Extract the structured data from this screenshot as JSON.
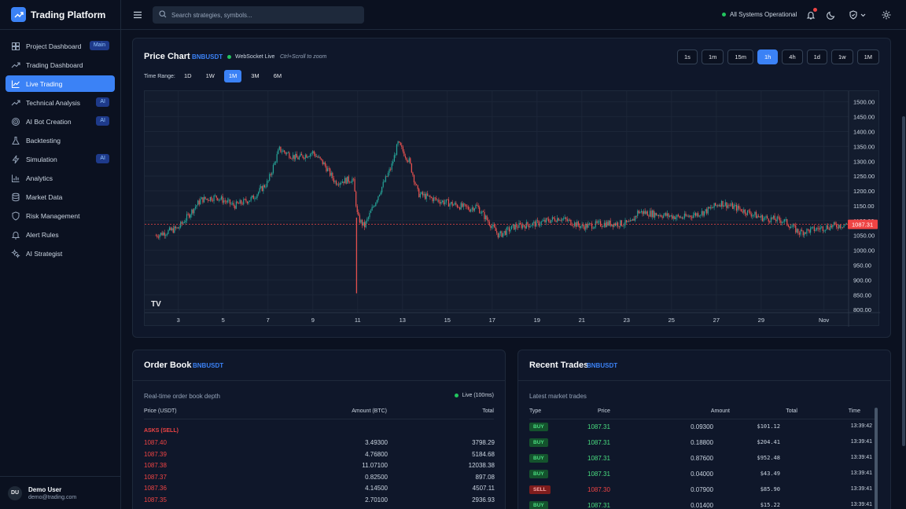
{
  "brand": {
    "title": "Trading Platform"
  },
  "sidebar": {
    "items": [
      {
        "label": "Project Dashboard",
        "icon": "grid-icon",
        "badge": "Main",
        "active": false
      },
      {
        "label": "Trading Dashboard",
        "icon": "trend-up-icon",
        "badge": "",
        "active": false
      },
      {
        "label": "Live Trading",
        "icon": "line-chart-icon",
        "badge": "",
        "active": true
      },
      {
        "label": "Technical Analysis",
        "icon": "trend-up-icon",
        "badge": "AI",
        "active": false
      },
      {
        "label": "AI Bot Creation",
        "icon": "target-icon",
        "badge": "AI",
        "active": false
      },
      {
        "label": "Backtesting",
        "icon": "flask-icon",
        "badge": "",
        "active": false
      },
      {
        "label": "Simulation",
        "icon": "lightning-icon",
        "badge": "AI",
        "active": false
      },
      {
        "label": "Analytics",
        "icon": "bar-chart-icon",
        "badge": "",
        "active": false
      },
      {
        "label": "Market Data",
        "icon": "database-icon",
        "badge": "",
        "active": false
      },
      {
        "label": "Risk Management",
        "icon": "shield-icon",
        "badge": "",
        "active": false
      },
      {
        "label": "Alert Rules",
        "icon": "bell-icon",
        "badge": "",
        "active": false
      },
      {
        "label": "AI Strategist",
        "icon": "sparkles-icon",
        "badge": "",
        "active": false
      }
    ]
  },
  "user": {
    "initials": "DU",
    "name": "Demo User",
    "email": "demo@trading.com"
  },
  "topbar": {
    "search_placeholder": "Search strategies, symbols...",
    "status": "All Systems Operational",
    "colors": {
      "status_ok": "#22c55e",
      "notification": "#ef4444"
    }
  },
  "price_chart": {
    "title": "Price Chart",
    "symbol": "BNBUSDT",
    "ws_status": "WebSocket Live",
    "hint": "Ctrl+Scroll to zoom",
    "timeframes": [
      "1s",
      "1m",
      "15m",
      "1h",
      "4h",
      "1d",
      "1w",
      "1M"
    ],
    "active_timeframe": "1h",
    "time_range_label": "Time Range:",
    "ranges": [
      "1D",
      "1W",
      "1M",
      "3M",
      "6M"
    ],
    "active_range": "1M",
    "logo_text": "TV"
  },
  "chart_data": {
    "type": "candlestick",
    "ylim": [
      800,
      1500
    ],
    "y_ticks": [
      "1500.00",
      "1450.00",
      "1400.00",
      "1350.00",
      "1300.00",
      "1250.00",
      "1200.00",
      "1150.00",
      "1100.00",
      "1050.00",
      "1000.00",
      "950.00",
      "900.00",
      "850.00",
      "800.00"
    ],
    "x_ticks": [
      "3",
      "5",
      "7",
      "9",
      "11",
      "13",
      "15",
      "17",
      "19",
      "21",
      "23",
      "25",
      "27",
      "29",
      "Nov"
    ],
    "current_price": "1087.31",
    "current_price_value": 1087.31,
    "close_path": [
      [
        2,
        1050
      ],
      [
        3,
        1075
      ],
      [
        4,
        1170
      ],
      [
        4.7,
        1180
      ],
      [
        5.5,
        1150
      ],
      [
        6.3,
        1175
      ],
      [
        7,
        1230
      ],
      [
        7.5,
        1340
      ],
      [
        8.3,
        1310
      ],
      [
        9,
        1330
      ],
      [
        9.5,
        1290
      ],
      [
        10,
        1230
      ],
      [
        10.8,
        1240
      ],
      [
        11,
        1110
      ],
      [
        11.3,
        1080
      ],
      [
        12,
        1200
      ],
      [
        12.5,
        1280
      ],
      [
        12.8,
        1360
      ],
      [
        13.3,
        1300
      ],
      [
        13.7,
        1190
      ],
      [
        14.5,
        1170
      ],
      [
        15.5,
        1150
      ],
      [
        16,
        1140
      ],
      [
        16.3,
        1150
      ],
      [
        16.8,
        1100
      ],
      [
        17.3,
        1050
      ],
      [
        18,
        1080
      ],
      [
        19,
        1090
      ],
      [
        20,
        1110
      ],
      [
        21,
        1080
      ],
      [
        22,
        1090
      ],
      [
        23.2,
        1090
      ],
      [
        23.5,
        1130
      ],
      [
        24.5,
        1120
      ],
      [
        25.5,
        1110
      ],
      [
        26.5,
        1130
      ],
      [
        27.2,
        1160
      ],
      [
        28,
        1140
      ],
      [
        29,
        1110
      ],
      [
        30,
        1100
      ],
      [
        30.7,
        1060
      ],
      [
        32,
        1080
      ],
      [
        32.8,
        1087
      ]
    ],
    "spike_low": {
      "x": 10.95,
      "y": 855
    },
    "colors": {
      "up": "#26a69a",
      "down": "#ef5350",
      "price_line": "#ef4444"
    }
  },
  "order_book": {
    "title": "Order Book",
    "symbol": "BNBUSDT",
    "subtitle": "Real-time order book depth",
    "live": "Live (100ms)",
    "headers": [
      "Price (USDT)",
      "Amount (BTC)",
      "Total"
    ],
    "asks_label": "ASKS (SELL)",
    "asks": [
      [
        "1087.40",
        "3.49300",
        "3798.29"
      ],
      [
        "1087.39",
        "4.76800",
        "5184.68"
      ],
      [
        "1087.38",
        "11.07100",
        "12038.38"
      ],
      [
        "1087.37",
        "0.82500",
        "897.08"
      ],
      [
        "1087.36",
        "4.14500",
        "4507.11"
      ],
      [
        "1087.35",
        "2.70100",
        "2936.93"
      ]
    ]
  },
  "recent_trades": {
    "title": "Recent Trades",
    "symbol": "BNBUSDT",
    "subtitle": "Latest market trades",
    "headers": [
      "Type",
      "Price",
      "Amount",
      "Total",
      "Time"
    ],
    "trades": [
      [
        "BUY",
        "1087.31",
        "0.09300",
        "$101.12",
        "13:39:42"
      ],
      [
        "BUY",
        "1087.31",
        "0.18800",
        "$204.41",
        "13:39:41"
      ],
      [
        "BUY",
        "1087.31",
        "0.87600",
        "$952.48",
        "13:39:41"
      ],
      [
        "BUY",
        "1087.31",
        "0.04000",
        "$43.49",
        "13:39:41"
      ],
      [
        "SELL",
        "1087.30",
        "0.07900",
        "$85.90",
        "13:39:41"
      ],
      [
        "BUY",
        "1087.31",
        "0.01400",
        "$15.22",
        "13:39:41"
      ]
    ]
  }
}
